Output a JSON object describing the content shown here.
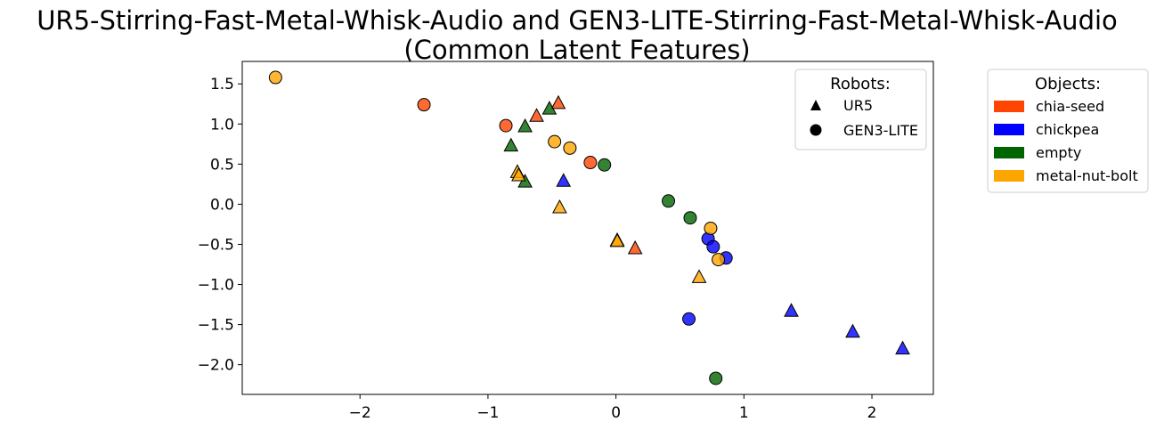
{
  "chart_data": {
    "type": "scatter",
    "title": "UR5-Stirring-Fast-Metal-Whisk-Audio and GEN3-LITE-Stirring-Fast-Metal-Whisk-Audio",
    "subtitle": "(Common Latent Features)",
    "xlabel": "",
    "ylabel": "",
    "xlim": [
      -2.92,
      2.48
    ],
    "ylim": [
      -2.37,
      1.78
    ],
    "xticks": [
      -2,
      -1,
      0,
      1,
      2
    ],
    "yticks": [
      1.5,
      1.0,
      0.5,
      0.0,
      -0.5,
      -1.0,
      -1.5,
      -2.0
    ],
    "xtick_labels": [
      "−2",
      "−1",
      "0",
      "1",
      "2"
    ],
    "ytick_labels": [
      "1.5",
      "1.0",
      "0.5",
      "0.0",
      "−0.5",
      "−1.0",
      "−1.5",
      "−2.0"
    ],
    "grid": false,
    "robots_legend": {
      "title": "Robots:",
      "placement": "top-right",
      "items": [
        {
          "label": "UR5",
          "marker": "triangle"
        },
        {
          "label": "GEN3-LITE",
          "marker": "circle"
        }
      ]
    },
    "objects_legend": {
      "title": "Objects:",
      "placement": "outside-right",
      "items": [
        {
          "label": "chia-seed",
          "color": "#ff4500"
        },
        {
          "label": "chickpea",
          "color": "#0000ff"
        },
        {
          "label": "empty",
          "color": "#006400"
        },
        {
          "label": "metal-nut-bolt",
          "color": "#ffa500"
        }
      ]
    },
    "series": [
      {
        "object": "chia-seed",
        "robot": "UR5",
        "color": "#ff4500",
        "points": [
          [
            -0.62,
            1.1
          ],
          [
            -0.45,
            1.26
          ],
          [
            0.15,
            -0.55
          ]
        ]
      },
      {
        "object": "chia-seed",
        "robot": "GEN3-LITE",
        "color": "#ff4500",
        "points": [
          [
            -1.5,
            1.24
          ],
          [
            -0.86,
            0.98
          ],
          [
            -0.2,
            0.52
          ]
        ]
      },
      {
        "object": "chickpea",
        "robot": "UR5",
        "color": "#0000ff",
        "points": [
          [
            -0.41,
            0.29
          ],
          [
            1.37,
            -1.33
          ],
          [
            1.85,
            -1.59
          ],
          [
            2.24,
            -1.8
          ]
        ]
      },
      {
        "object": "chickpea",
        "robot": "GEN3-LITE",
        "color": "#0000ff",
        "points": [
          [
            0.72,
            -0.43
          ],
          [
            0.76,
            -0.53
          ],
          [
            0.86,
            -0.67
          ],
          [
            0.57,
            -1.43
          ]
        ]
      },
      {
        "object": "empty",
        "robot": "UR5",
        "color": "#006400",
        "points": [
          [
            -0.82,
            0.73
          ],
          [
            -0.71,
            0.97
          ],
          [
            -0.52,
            1.19
          ],
          [
            -0.71,
            0.28
          ]
        ]
      },
      {
        "object": "empty",
        "robot": "GEN3-LITE",
        "color": "#006400",
        "points": [
          [
            -0.09,
            0.49
          ],
          [
            0.41,
            0.04
          ],
          [
            0.58,
            -0.17
          ],
          [
            0.78,
            -2.17
          ]
        ]
      },
      {
        "object": "metal-nut-bolt",
        "robot": "UR5",
        "color": "#ffa500",
        "points": [
          [
            -0.77,
            0.4
          ],
          [
            -0.76,
            0.36
          ],
          [
            -0.44,
            -0.04
          ],
          [
            0.01,
            -0.45
          ],
          [
            0.01,
            -0.46
          ],
          [
            0.65,
            -0.91
          ]
        ]
      },
      {
        "object": "metal-nut-bolt",
        "robot": "GEN3-LITE",
        "color": "#ffa500",
        "points": [
          [
            -2.66,
            1.58
          ],
          [
            -0.48,
            0.78
          ],
          [
            -0.36,
            0.7
          ],
          [
            0.74,
            -0.3
          ],
          [
            0.8,
            -0.69
          ]
        ]
      }
    ]
  }
}
